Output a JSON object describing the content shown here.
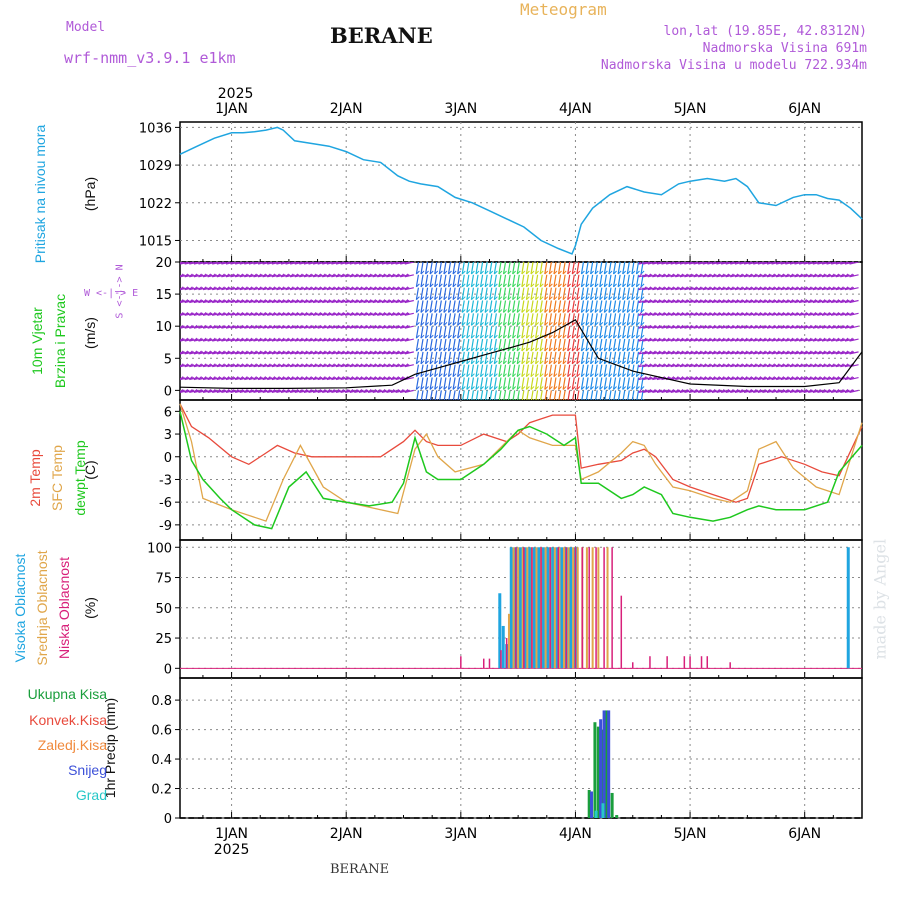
{
  "header": {
    "model_label": "Model",
    "model_name": "wrf-nmm_v3.9.1 e1km",
    "station": "BERANE",
    "product": "Meteogram",
    "lonlat": "lon,lat (19.85E, 42.8312N)",
    "altitude": "Nadmorska Visina 691m",
    "model_altitude": "Nadmorska Visina u modelu 722.934m"
  },
  "top_axis": {
    "year": "2025",
    "days": [
      "1JAN",
      "2JAN",
      "3JAN",
      "4JAN",
      "5JAN",
      "6JAN"
    ]
  },
  "bottom_axis": {
    "year": "2025",
    "days": [
      "1JAN",
      "2JAN",
      "3JAN",
      "4JAN",
      "5JAN",
      "6JAN"
    ]
  },
  "footer": {
    "station": "BERANE",
    "watermark": "made by Angel"
  },
  "labels": {
    "pressure": {
      "name": "Pritisak na nivou mora",
      "unit": "(hPa)"
    },
    "wind": {
      "name1": "10m Vjetar",
      "name2": "Brzina i Pravac",
      "unit": "(m/s)",
      "compass": "W <-|-> E",
      "compass2": "S <-|-> N"
    },
    "temp": {
      "t2m": "2m Temp",
      "sfc": "SFC Temp",
      "dew": "dewpt Temp",
      "unit": "(C)"
    },
    "cloud": {
      "high": "Visoka Oblacnost",
      "mid": "Srednja Oblacnost",
      "low": "Niska Oblacnost",
      "unit": "(%)"
    },
    "precip": {
      "unit_label": "1hr Precip (mm)",
      "legend": [
        "Ukupna Kisa",
        "Konvek.Kisa",
        "Zaledj.Kisa",
        "Snijeg",
        "Grad"
      ]
    }
  },
  "colors": {
    "pressure": "#1fa5e0",
    "t2m": "#e84a3c",
    "sfc": "#e0a64a",
    "dew": "#1ec81e",
    "cloud_high": "#1fa5e0",
    "cloud_mid": "#e0a64a",
    "cloud_low": "#d8207a",
    "rain_total": "#1a9e3c",
    "rain_conv": "#e84a3c",
    "rain_frz": "#f08a3c",
    "snow": "#3c50d8",
    "hail": "#28c8c8",
    "violet": "#b05ad8"
  },
  "chart_data": [
    {
      "type": "line",
      "title": "",
      "ylabel": "Pritisak na nivou mora (hPa)",
      "ylim": [
        1011,
        1037
      ],
      "yticks": [
        1015,
        1022,
        1029,
        1036
      ],
      "xlim_days": [
        0.55,
        6.5
      ],
      "grid": true,
      "series": [
        {
          "name": "Pritisak na nivou mora",
          "x": [
            0.55,
            0.7,
            0.85,
            1.0,
            1.1,
            1.2,
            1.3,
            1.4,
            1.45,
            1.55,
            1.7,
            1.85,
            2.0,
            2.15,
            2.3,
            2.45,
            2.55,
            2.65,
            2.8,
            2.95,
            3.1,
            3.25,
            3.4,
            3.55,
            3.7,
            3.85,
            3.97,
            4.0,
            4.05,
            4.15,
            4.3,
            4.45,
            4.6,
            4.75,
            4.9,
            5.0,
            5.15,
            5.3,
            5.4,
            5.5,
            5.6,
            5.75,
            5.9,
            6.0,
            6.1,
            6.2,
            6.3,
            6.4,
            6.5
          ],
          "y": [
            1031,
            1032.5,
            1034,
            1035,
            1035,
            1035.2,
            1035.5,
            1036,
            1035.5,
            1033.5,
            1033,
            1032.5,
            1031.5,
            1030,
            1029.5,
            1027,
            1026,
            1025.5,
            1025,
            1023,
            1022,
            1020.5,
            1019,
            1017.5,
            1015,
            1013.5,
            1012.5,
            1014,
            1018,
            1021,
            1023.5,
            1025,
            1024,
            1023.5,
            1025.5,
            1026,
            1026.5,
            1026,
            1026.5,
            1025,
            1022,
            1021.5,
            1023,
            1023.5,
            1023.5,
            1022.8,
            1022.5,
            1021,
            1019
          ]
        }
      ]
    },
    {
      "type": "line",
      "title": "",
      "ylabel": "10m Vjetar Brzina i Pravac (m/s)",
      "ylim": [
        -1.5,
        20
      ],
      "yticks": [
        0,
        5,
        10,
        15,
        20
      ],
      "xlim_days": [
        0.55,
        6.5
      ],
      "grid": true,
      "series": [
        {
          "name": "10m Vjetar",
          "x": [
            0.55,
            1.0,
            1.5,
            2.0,
            2.4,
            2.6,
            2.8,
            3.0,
            3.2,
            3.4,
            3.6,
            3.8,
            4.0,
            4.2,
            4.5,
            5.0,
            5.5,
            6.0,
            6.3,
            6.5
          ],
          "y": [
            0.5,
            0.3,
            0.3,
            0.4,
            0.8,
            2.5,
            3.5,
            4.5,
            5.5,
            6.5,
            7.5,
            9.0,
            11.0,
            5.0,
            3.0,
            1.0,
            0.6,
            0.6,
            1.2,
            6.0
          ]
        }
      ]
    },
    {
      "type": "line",
      "title": "",
      "ylabel": "(C)",
      "ylim": [
        -11,
        7.5
      ],
      "yticks": [
        -9,
        -6,
        -3,
        0,
        3,
        6
      ],
      "xlim_days": [
        0.55,
        6.5
      ],
      "grid": true,
      "series": [
        {
          "name": "2m Temp",
          "x": [
            0.55,
            0.65,
            0.8,
            1.0,
            1.15,
            1.3,
            1.4,
            1.55,
            1.7,
            2.0,
            2.3,
            2.5,
            2.6,
            2.7,
            2.8,
            3.0,
            3.2,
            3.4,
            3.5,
            3.6,
            3.7,
            3.8,
            4.0,
            4.05,
            4.2,
            4.4,
            4.5,
            4.6,
            4.7,
            4.85,
            5.0,
            5.2,
            5.3,
            5.4,
            5.5,
            5.6,
            5.8,
            6.0,
            6.15,
            6.3,
            6.5
          ],
          "y": [
            7,
            4,
            2.5,
            0,
            -1,
            0.5,
            1.5,
            0.5,
            0,
            0,
            0,
            2,
            3.5,
            2,
            1.5,
            1.5,
            3,
            2,
            3,
            4.5,
            5,
            5.5,
            5.5,
            -1.5,
            -1,
            -0.5,
            0.5,
            1,
            0,
            -3,
            -4,
            -5,
            -5.5,
            -6,
            -5.5,
            -1,
            0,
            -1,
            -2,
            -2.5,
            4
          ]
        },
        {
          "name": "SFC Temp",
          "x": [
            0.55,
            0.65,
            0.75,
            1.0,
            1.3,
            1.45,
            1.6,
            1.8,
            2.0,
            2.3,
            2.45,
            2.6,
            2.7,
            2.8,
            2.95,
            3.2,
            3.4,
            3.5,
            3.6,
            3.8,
            4.0,
            4.05,
            4.2,
            4.4,
            4.5,
            4.6,
            4.7,
            4.85,
            5.0,
            5.2,
            5.35,
            5.5,
            5.6,
            5.75,
            5.9,
            6.1,
            6.3,
            6.5
          ],
          "y": [
            7,
            2,
            -5.5,
            -7,
            -8.5,
            -3,
            1.5,
            -4,
            -6,
            -7,
            -7.5,
            1,
            3,
            0,
            -2,
            -1,
            2,
            3.5,
            2.5,
            1.5,
            1.5,
            -3,
            -2,
            0.5,
            2,
            1.5,
            -1,
            -4,
            -4.5,
            -5.5,
            -6,
            -4.5,
            1,
            2,
            -1.5,
            -4,
            -5,
            4.5
          ]
        },
        {
          "name": "dewpt Temp",
          "x": [
            0.55,
            0.65,
            0.75,
            0.9,
            1.0,
            1.2,
            1.35,
            1.5,
            1.65,
            1.8,
            2.0,
            2.2,
            2.4,
            2.5,
            2.6,
            2.7,
            2.8,
            3.0,
            3.2,
            3.35,
            3.5,
            3.6,
            3.75,
            3.9,
            4.0,
            4.05,
            4.2,
            4.4,
            4.5,
            4.6,
            4.75,
            4.85,
            5.0,
            5.2,
            5.35,
            5.5,
            5.6,
            5.75,
            5.9,
            6.0,
            6.2,
            6.3,
            6.5
          ],
          "y": [
            6,
            -0.5,
            -3,
            -5.5,
            -7,
            -9,
            -9.5,
            -4,
            -2,
            -5.5,
            -6,
            -6.5,
            -6,
            -3.5,
            2.5,
            -2,
            -3,
            -3,
            -1,
            1,
            3.5,
            4,
            3,
            1.5,
            2.5,
            -3.5,
            -3.5,
            -5.5,
            -5,
            -4,
            -5,
            -7.5,
            -8,
            -8.5,
            -8,
            -7,
            -6.5,
            -7,
            -7,
            -7,
            -6,
            -2,
            1.5
          ]
        }
      ]
    },
    {
      "type": "bar",
      "title": "",
      "ylabel": "(%)",
      "ylim": [
        -8,
        106
      ],
      "yticks": [
        0,
        25,
        50,
        75,
        100
      ],
      "xlim_days": [
        0.55,
        6.5
      ],
      "grid": true,
      "series": [
        {
          "name": "Visoka Oblacnost",
          "x": [
            3.34,
            3.37,
            3.4,
            3.44,
            3.48,
            3.52,
            3.56,
            3.6,
            3.64,
            3.68,
            3.72,
            3.76,
            3.8,
            3.84,
            3.88,
            3.92,
            3.96,
            4.0,
            6.38
          ],
          "y": [
            62,
            35,
            20,
            100,
            100,
            100,
            100,
            100,
            100,
            100,
            100,
            100,
            100,
            100,
            100,
            100,
            100,
            100,
            100
          ]
        },
        {
          "name": "Srednja Oblacnost",
          "x": [
            3.42,
            3.46,
            3.5,
            3.54,
            3.58,
            3.62,
            3.66,
            3.7,
            3.74,
            3.78,
            3.82,
            3.86,
            3.9,
            3.94,
            3.98,
            4.02,
            4.06,
            4.1,
            4.15,
            4.2,
            4.28
          ],
          "y": [
            45,
            100,
            100,
            100,
            100,
            100,
            100,
            100,
            100,
            100,
            100,
            100,
            100,
            100,
            100,
            100,
            100,
            100,
            100,
            100,
            100
          ]
        },
        {
          "name": "Niska Oblacnost",
          "x": [
            3.0,
            3.2,
            3.25,
            3.35,
            3.4,
            3.48,
            3.55,
            3.62,
            3.7,
            3.78,
            3.85,
            3.92,
            4.0,
            4.06,
            4.12,
            4.18,
            4.25,
            4.32,
            4.4,
            4.5,
            4.65,
            4.8,
            4.95,
            5.0,
            5.1,
            5.15,
            5.35
          ],
          "y": [
            10,
            8,
            8,
            15,
            25,
            100,
            100,
            100,
            100,
            100,
            100,
            100,
            100,
            100,
            100,
            100,
            100,
            100,
            60,
            5,
            10,
            10,
            10,
            10,
            10,
            10,
            5
          ]
        }
      ]
    },
    {
      "type": "bar",
      "title": "",
      "ylabel": "1hr Precip (mm)",
      "ylim": [
        0,
        0.95
      ],
      "yticks": [
        0,
        0.2,
        0.4,
        0.6,
        0.8
      ],
      "xlim_days": [
        0.55,
        6.5
      ],
      "grid": true,
      "series": [
        {
          "name": "Ukupna Kisa",
          "x": [
            4.12,
            4.17,
            4.2,
            4.23,
            4.27,
            4.32,
            4.36
          ],
          "y": [
            0.19,
            0.65,
            0.62,
            0.6,
            0.73,
            0.17,
            0.02
          ]
        },
        {
          "name": "Snijeg",
          "x": [
            4.14,
            4.22,
            4.25,
            4.29
          ],
          "y": [
            0.18,
            0.67,
            0.73,
            0.73
          ]
        },
        {
          "name": "Grad",
          "x": [
            4.18,
            4.24
          ],
          "y": [
            0.05,
            0.1
          ]
        }
      ]
    }
  ]
}
